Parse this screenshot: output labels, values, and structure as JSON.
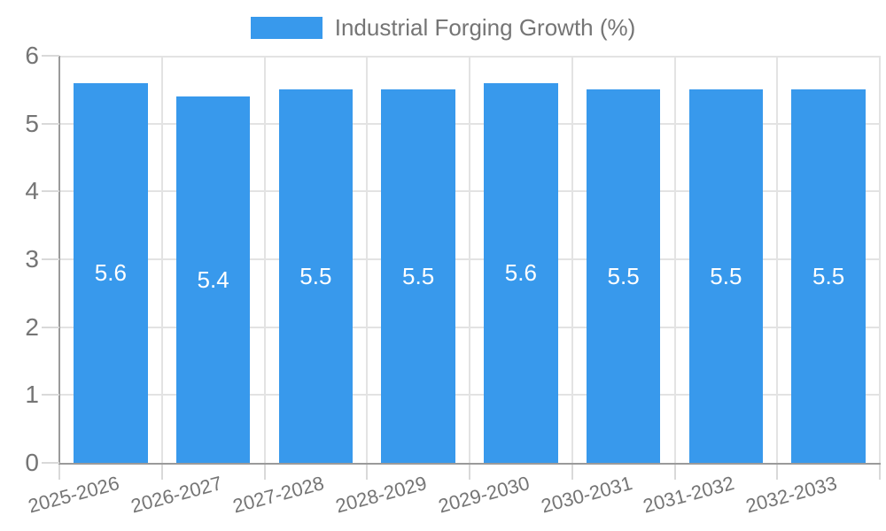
{
  "chart_data": {
    "type": "bar",
    "title": "",
    "legend": "Industrial Forging Growth (%)",
    "legend_position": "top",
    "categories": [
      "2025-2026",
      "2026-2027",
      "2027-2028",
      "2028-2029",
      "2029-2030",
      "2030-2031",
      "2031-2032",
      "2032-2033"
    ],
    "values": [
      5.6,
      5.4,
      5.5,
      5.5,
      5.6,
      5.5,
      5.5,
      5.5
    ],
    "value_labels": [
      "5.6",
      "5.4",
      "5.5",
      "5.5",
      "5.6",
      "5.5",
      "5.5",
      "5.5"
    ],
    "y_ticks": [
      "0",
      "1",
      "2",
      "3",
      "4",
      "5",
      "6"
    ],
    "ylim": [
      0,
      6
    ],
    "xlabel": "",
    "ylabel": "",
    "grid": true,
    "colors": {
      "bar": "#3899EC",
      "bar_label": "#FFFFFF",
      "axis_text": "#757575",
      "grid_line": "#E3E3E3",
      "tick_line": "#D9D9D9",
      "axis_line": "#9A9A9A",
      "background": "#FFFFFF"
    }
  }
}
